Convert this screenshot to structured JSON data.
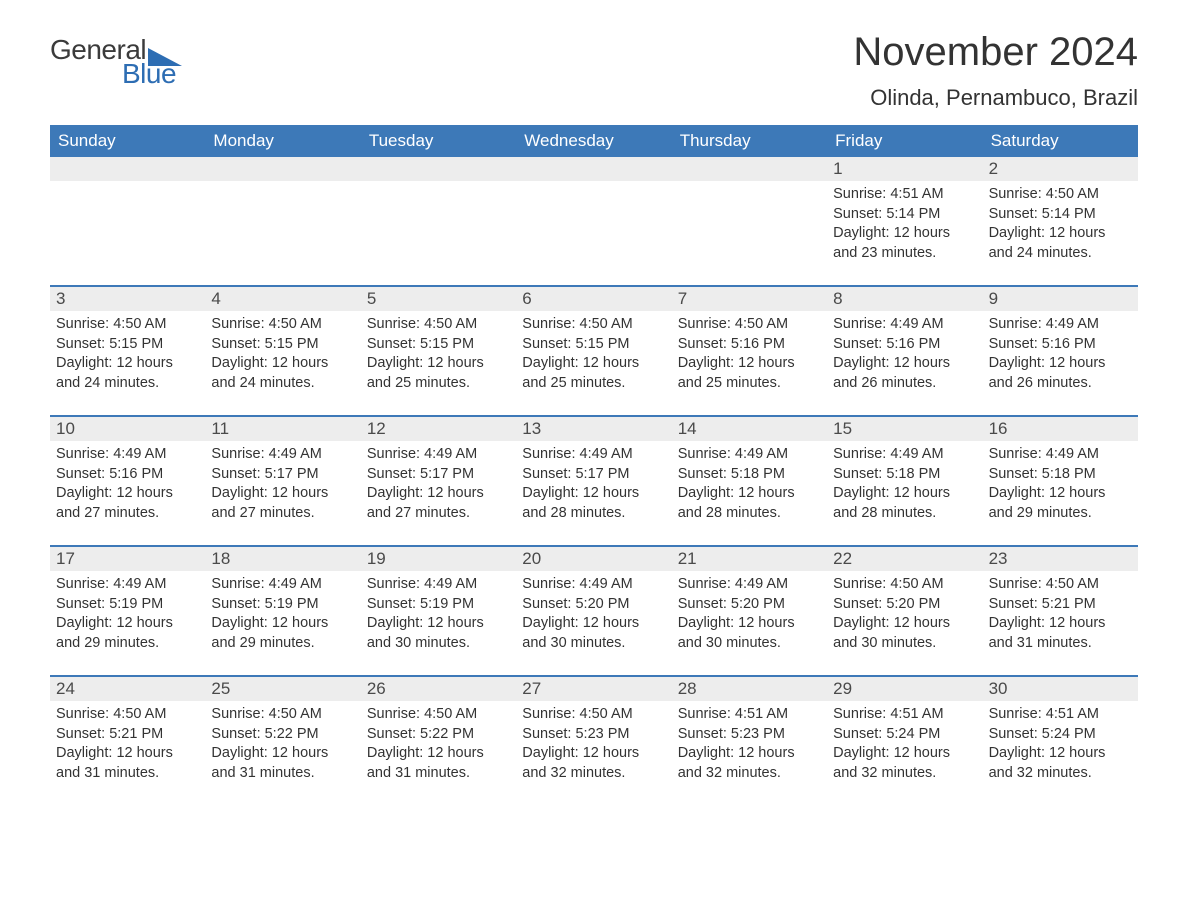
{
  "logo": {
    "general": "General",
    "blue": "Blue",
    "shape_color": "#2d6db3"
  },
  "title": "November 2024",
  "location": "Olinda, Pernambuco, Brazil",
  "weekday_header_bg": "#3d79b8",
  "weekday_header_color": "#ffffff",
  "daynum_bg": "#ededed",
  "text_color": "#333333",
  "week_border_color": "#3d79b8",
  "body_bg": "#ffffff",
  "title_fontsize": 40,
  "location_fontsize": 22,
  "weekday_fontsize": 17,
  "body_fontsize": 14.5,
  "weekdays": [
    "Sunday",
    "Monday",
    "Tuesday",
    "Wednesday",
    "Thursday",
    "Friday",
    "Saturday"
  ],
  "weeks": [
    [
      null,
      null,
      null,
      null,
      null,
      {
        "n": "1",
        "sunrise": "Sunrise: 4:51 AM",
        "sunset": "Sunset: 5:14 PM",
        "daylight": "Daylight: 12 hours and 23 minutes."
      },
      {
        "n": "2",
        "sunrise": "Sunrise: 4:50 AM",
        "sunset": "Sunset: 5:14 PM",
        "daylight": "Daylight: 12 hours and 24 minutes."
      }
    ],
    [
      {
        "n": "3",
        "sunrise": "Sunrise: 4:50 AM",
        "sunset": "Sunset: 5:15 PM",
        "daylight": "Daylight: 12 hours and 24 minutes."
      },
      {
        "n": "4",
        "sunrise": "Sunrise: 4:50 AM",
        "sunset": "Sunset: 5:15 PM",
        "daylight": "Daylight: 12 hours and 24 minutes."
      },
      {
        "n": "5",
        "sunrise": "Sunrise: 4:50 AM",
        "sunset": "Sunset: 5:15 PM",
        "daylight": "Daylight: 12 hours and 25 minutes."
      },
      {
        "n": "6",
        "sunrise": "Sunrise: 4:50 AM",
        "sunset": "Sunset: 5:15 PM",
        "daylight": "Daylight: 12 hours and 25 minutes."
      },
      {
        "n": "7",
        "sunrise": "Sunrise: 4:50 AM",
        "sunset": "Sunset: 5:16 PM",
        "daylight": "Daylight: 12 hours and 25 minutes."
      },
      {
        "n": "8",
        "sunrise": "Sunrise: 4:49 AM",
        "sunset": "Sunset: 5:16 PM",
        "daylight": "Daylight: 12 hours and 26 minutes."
      },
      {
        "n": "9",
        "sunrise": "Sunrise: 4:49 AM",
        "sunset": "Sunset: 5:16 PM",
        "daylight": "Daylight: 12 hours and 26 minutes."
      }
    ],
    [
      {
        "n": "10",
        "sunrise": "Sunrise: 4:49 AM",
        "sunset": "Sunset: 5:16 PM",
        "daylight": "Daylight: 12 hours and 27 minutes."
      },
      {
        "n": "11",
        "sunrise": "Sunrise: 4:49 AM",
        "sunset": "Sunset: 5:17 PM",
        "daylight": "Daylight: 12 hours and 27 minutes."
      },
      {
        "n": "12",
        "sunrise": "Sunrise: 4:49 AM",
        "sunset": "Sunset: 5:17 PM",
        "daylight": "Daylight: 12 hours and 27 minutes."
      },
      {
        "n": "13",
        "sunrise": "Sunrise: 4:49 AM",
        "sunset": "Sunset: 5:17 PM",
        "daylight": "Daylight: 12 hours and 28 minutes."
      },
      {
        "n": "14",
        "sunrise": "Sunrise: 4:49 AM",
        "sunset": "Sunset: 5:18 PM",
        "daylight": "Daylight: 12 hours and 28 minutes."
      },
      {
        "n": "15",
        "sunrise": "Sunrise: 4:49 AM",
        "sunset": "Sunset: 5:18 PM",
        "daylight": "Daylight: 12 hours and 28 minutes."
      },
      {
        "n": "16",
        "sunrise": "Sunrise: 4:49 AM",
        "sunset": "Sunset: 5:18 PM",
        "daylight": "Daylight: 12 hours and 29 minutes."
      }
    ],
    [
      {
        "n": "17",
        "sunrise": "Sunrise: 4:49 AM",
        "sunset": "Sunset: 5:19 PM",
        "daylight": "Daylight: 12 hours and 29 minutes."
      },
      {
        "n": "18",
        "sunrise": "Sunrise: 4:49 AM",
        "sunset": "Sunset: 5:19 PM",
        "daylight": "Daylight: 12 hours and 29 minutes."
      },
      {
        "n": "19",
        "sunrise": "Sunrise: 4:49 AM",
        "sunset": "Sunset: 5:19 PM",
        "daylight": "Daylight: 12 hours and 30 minutes."
      },
      {
        "n": "20",
        "sunrise": "Sunrise: 4:49 AM",
        "sunset": "Sunset: 5:20 PM",
        "daylight": "Daylight: 12 hours and 30 minutes."
      },
      {
        "n": "21",
        "sunrise": "Sunrise: 4:49 AM",
        "sunset": "Sunset: 5:20 PM",
        "daylight": "Daylight: 12 hours and 30 minutes."
      },
      {
        "n": "22",
        "sunrise": "Sunrise: 4:50 AM",
        "sunset": "Sunset: 5:20 PM",
        "daylight": "Daylight: 12 hours and 30 minutes."
      },
      {
        "n": "23",
        "sunrise": "Sunrise: 4:50 AM",
        "sunset": "Sunset: 5:21 PM",
        "daylight": "Daylight: 12 hours and 31 minutes."
      }
    ],
    [
      {
        "n": "24",
        "sunrise": "Sunrise: 4:50 AM",
        "sunset": "Sunset: 5:21 PM",
        "daylight": "Daylight: 12 hours and 31 minutes."
      },
      {
        "n": "25",
        "sunrise": "Sunrise: 4:50 AM",
        "sunset": "Sunset: 5:22 PM",
        "daylight": "Daylight: 12 hours and 31 minutes."
      },
      {
        "n": "26",
        "sunrise": "Sunrise: 4:50 AM",
        "sunset": "Sunset: 5:22 PM",
        "daylight": "Daylight: 12 hours and 31 minutes."
      },
      {
        "n": "27",
        "sunrise": "Sunrise: 4:50 AM",
        "sunset": "Sunset: 5:23 PM",
        "daylight": "Daylight: 12 hours and 32 minutes."
      },
      {
        "n": "28",
        "sunrise": "Sunrise: 4:51 AM",
        "sunset": "Sunset: 5:23 PM",
        "daylight": "Daylight: 12 hours and 32 minutes."
      },
      {
        "n": "29",
        "sunrise": "Sunrise: 4:51 AM",
        "sunset": "Sunset: 5:24 PM",
        "daylight": "Daylight: 12 hours and 32 minutes."
      },
      {
        "n": "30",
        "sunrise": "Sunrise: 4:51 AM",
        "sunset": "Sunset: 5:24 PM",
        "daylight": "Daylight: 12 hours and 32 minutes."
      }
    ]
  ]
}
